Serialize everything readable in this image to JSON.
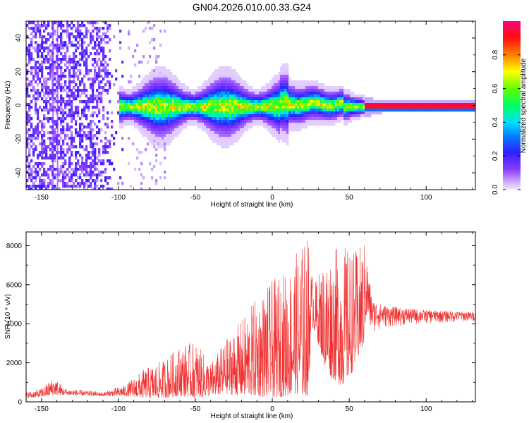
{
  "title": "GN04.2026.010.00.33.G24",
  "chart_data": [
    {
      "type": "heatmap",
      "xlabel": "Height of straight line (km)",
      "ylabel": "Frequency (Hz)",
      "xlim": [
        -160,
        132
      ],
      "ylim": [
        -50,
        50
      ],
      "x_ticks": [
        -150,
        -100,
        -50,
        0,
        50,
        100
      ],
      "y_ticks": [
        -40,
        -20,
        0,
        20,
        40
      ],
      "colorbar": {
        "label": "Normalized spectral amplitude",
        "range": [
          0,
          1
        ],
        "ticks": [
          0.0,
          0.2,
          0.4,
          0.6,
          0.8
        ],
        "tick_labels": [
          "0.0",
          "0.2",
          "0.4",
          "0.6",
          "0.8"
        ]
      },
      "description_points": {
        "noise_region_km": [
          -160,
          -95
        ],
        "signal_band_start_km": -100,
        "signal_center_freq_hz": 0,
        "signal_halfwidth_hz_near": [
          8,
          5,
          3,
          1
        ]
      }
    },
    {
      "type": "line",
      "xlabel": "Height of straight line (km)",
      "ylabel": "SNR (10 * v/v)",
      "xlim": [
        -160,
        132
      ],
      "ylim": [
        0,
        8700
      ],
      "x_ticks": [
        -150,
        -100,
        -50,
        0,
        50,
        100
      ],
      "y_ticks": [
        0,
        2000,
        4000,
        6000,
        8000
      ],
      "color": "#f03030",
      "envelope": {
        "x": [
          -160,
          -150,
          -142,
          -135,
          -110,
          -95,
          -85,
          -70,
          -60,
          -50,
          -40,
          -30,
          -20,
          -10,
          0,
          10,
          15,
          20,
          24,
          25,
          28,
          35,
          45,
          50,
          55,
          60,
          65,
          75,
          100,
          132
        ],
        "upper": [
          500,
          700,
          1300,
          700,
          500,
          900,
          1600,
          2200,
          2900,
          3100,
          2000,
          3200,
          4200,
          5400,
          6200,
          6800,
          7600,
          8200,
          8700,
          6800,
          6200,
          7600,
          8100,
          7900,
          7800,
          8200,
          5200,
          4900,
          4700,
          4600
        ],
        "lower": [
          200,
          250,
          350,
          350,
          300,
          300,
          200,
          200,
          300,
          200,
          300,
          400,
          300,
          300,
          200,
          300,
          400,
          300,
          300,
          4000,
          3500,
          1500,
          800,
          1200,
          2000,
          3000,
          3500,
          3800,
          4000,
          4100
        ]
      }
    }
  ]
}
